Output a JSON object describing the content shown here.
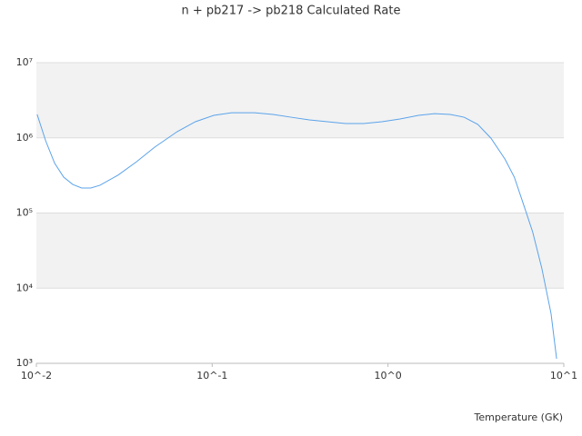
{
  "chart_data": {
    "type": "line",
    "title": "n + pb217 -> pb218 Calculated Rate",
    "xlabel": "Temperature (GK)",
    "log_x": true,
    "log_y": true,
    "grid": true,
    "band_color": "#f2f2f2",
    "xlim": [
      0.01,
      10
    ],
    "ylim": [
      1000,
      10000000
    ],
    "xticks": [
      {
        "value": 0.01,
        "label": "10^-2"
      },
      {
        "value": 0.1,
        "label": "10^-1"
      },
      {
        "value": 1,
        "label": "10^0"
      },
      {
        "value": 10,
        "label": "10^1"
      }
    ],
    "yticks": [
      {
        "value": 1000,
        "label": "10³"
      },
      {
        "value": 10000,
        "label": "10⁴"
      },
      {
        "value": 100000,
        "label": "10⁵"
      },
      {
        "value": 1000000,
        "label": "10⁶"
      },
      {
        "value": 10000000,
        "label": "10⁷"
      }
    ],
    "x": [
      0.0101,
      0.0113,
      0.0127,
      0.0143,
      0.0161,
      0.0181,
      0.0204,
      0.023,
      0.0292,
      0.0371,
      0.047,
      0.0633,
      0.0803,
      0.102,
      0.129,
      0.174,
      0.222,
      0.281,
      0.357,
      0.452,
      0.574,
      0.728,
      0.924,
      1.17,
      1.49,
      1.84,
      2.26,
      2.71,
      3.24,
      3.85,
      4.63,
      5.23,
      5.9,
      6.65,
      7.49,
      8.46,
      9.1
    ],
    "series": [
      {
        "color": "#5ba3ea",
        "values": [
          2050000,
          910000,
          460000,
          300000,
          240000,
          215000,
          215000,
          234000,
          320000,
          480000,
          750000,
          1210000,
          1640000,
          1990000,
          2160000,
          2160000,
          2050000,
          1880000,
          1730000,
          1640000,
          1550000,
          1550000,
          1640000,
          1780000,
          1990000,
          2100000,
          2050000,
          1880000,
          1510000,
          990000,
          520000,
          300000,
          130000,
          56000,
          18600,
          4600,
          1150
        ]
      }
    ]
  }
}
